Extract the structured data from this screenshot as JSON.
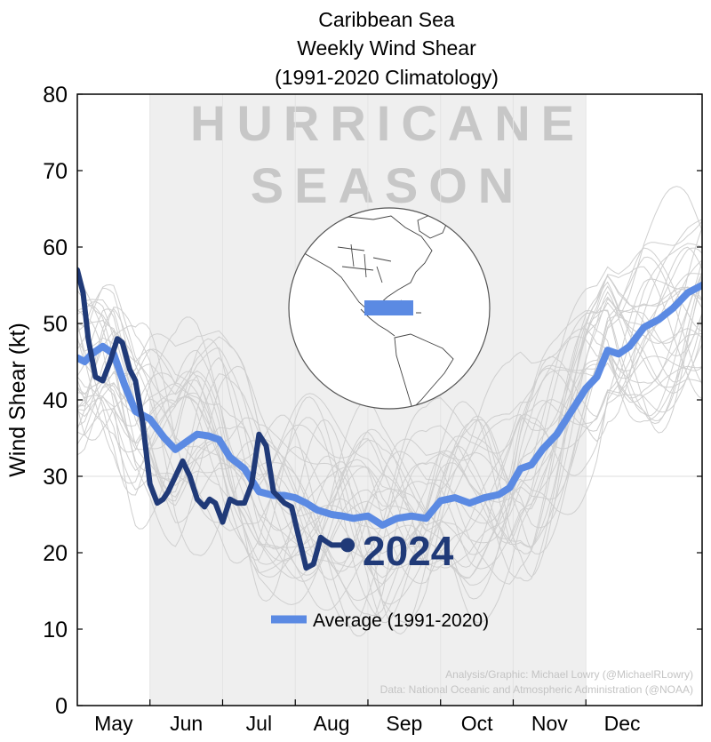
{
  "chart_data": {
    "type": "line",
    "title": [
      "Caribbean Sea",
      "Weekly Wind Shear",
      "(1991-2020 Climatology)"
    ],
    "ylabel": "Wind Shear (kt)",
    "xlabel": "",
    "ylim": [
      0,
      80
    ],
    "yticks": [
      0,
      10,
      20,
      30,
      40,
      50,
      60,
      70,
      80
    ],
    "xlim": [
      0,
      8.6
    ],
    "months": [
      "May",
      "Jun",
      "Jul",
      "Aug",
      "Sep",
      "Oct",
      "Nov",
      "Dec"
    ],
    "hurricane_season": {
      "start": 1,
      "end": 7,
      "label": [
        "HURRICANE",
        "SEASON"
      ]
    },
    "series": [
      {
        "name": "Average (1991-2020)",
        "color": "#5b8ae3",
        "x": [
          0,
          0.1,
          0.2,
          0.35,
          0.5,
          0.65,
          0.8,
          1.0,
          1.2,
          1.35,
          1.5,
          1.65,
          1.8,
          1.95,
          2.1,
          2.3,
          2.5,
          2.7,
          2.85,
          3.0,
          3.15,
          3.3,
          3.5,
          3.65,
          3.8,
          4.0,
          4.2,
          4.4,
          4.6,
          4.8,
          5.0,
          5.2,
          5.4,
          5.6,
          5.8,
          5.95,
          6.1,
          6.25,
          6.4,
          6.6,
          6.8,
          7.0,
          7.15,
          7.3,
          7.45,
          7.6,
          7.8,
          8.0,
          8.2,
          8.4,
          8.6
        ],
        "values": [
          45.5,
          45,
          46,
          47,
          46,
          42,
          38.5,
          37.5,
          35,
          33.5,
          34.5,
          35.5,
          35.3,
          34.8,
          32.5,
          31,
          28,
          27.5,
          27.5,
          27.2,
          26.5,
          25.6,
          25,
          24.8,
          24.5,
          24.8,
          23.6,
          24.5,
          24.8,
          24.5,
          26.8,
          27.2,
          26.5,
          27.2,
          27.6,
          28.5,
          31,
          31.5,
          33.5,
          35.5,
          38.5,
          41.5,
          43,
          46.5,
          46,
          47,
          49.5,
          50.5,
          52,
          54,
          55
        ]
      },
      {
        "name": "2024",
        "label": "2024",
        "color": "#203a78",
        "x": [
          0,
          0.08,
          0.15,
          0.25,
          0.35,
          0.45,
          0.55,
          0.62,
          0.72,
          0.8,
          0.9,
          1.0,
          1.1,
          1.18,
          1.25,
          1.35,
          1.45,
          1.55,
          1.65,
          1.75,
          1.82,
          1.9,
          2.0,
          2.1,
          2.2,
          2.3,
          2.4,
          2.5,
          2.6,
          2.7,
          2.8,
          2.85,
          2.95,
          3.05,
          3.15,
          3.25,
          3.35,
          3.42,
          3.5,
          3.58,
          3.65,
          3.72
        ],
        "values": [
          57,
          54,
          48,
          43,
          42.5,
          45,
          48,
          47.5,
          44,
          42.5,
          37,
          29,
          26.5,
          27,
          28,
          30,
          32,
          30,
          27,
          26,
          27,
          26.5,
          24,
          27,
          26.5,
          26.5,
          29,
          35.5,
          34,
          28,
          27,
          26.5,
          26,
          22,
          18,
          18.5,
          22,
          21.5,
          21,
          21,
          21,
          21
        ]
      }
    ],
    "legend": {
      "label": "Average (1991-2020)",
      "position": "bottom-center"
    },
    "inset": {
      "description": "globe-map",
      "highlight": "Caribbean Sea region"
    },
    "credits": [
      "Analysis/Graphic: Michael Lowry (@MichaelRLowry)",
      "Data: National Oceanic and Atmospheric Administration (@NOAA)"
    ]
  }
}
